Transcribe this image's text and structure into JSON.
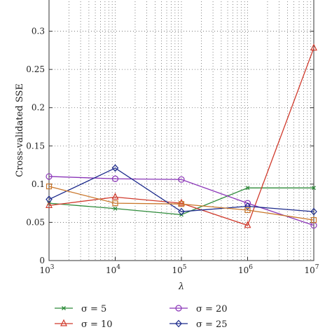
{
  "chart_data": {
    "type": "line",
    "xlabel": "λ",
    "ylabel": "Cross-validated SSE",
    "x": [
      1000,
      10000,
      100000,
      1000000,
      10000000
    ],
    "x_tick_labels": [
      {
        "base": "10",
        "exp": "3"
      },
      {
        "base": "10",
        "exp": "4"
      },
      {
        "base": "10",
        "exp": "5"
      },
      {
        "base": "10",
        "exp": "6"
      },
      {
        "base": "10",
        "exp": "7"
      }
    ],
    "x_scale": "log",
    "xlim": [
      1000,
      10000000
    ],
    "ylim": [
      0,
      0.35
    ],
    "y_ticks": [
      0,
      0.05,
      0.1,
      0.15,
      0.2,
      0.25,
      0.3
    ],
    "y_tick_labels": [
      "0",
      "0.05",
      "0.1",
      "0.15",
      "0.2",
      "0.25",
      "0.3"
    ],
    "grid": true,
    "legend_position": "bottom",
    "series": [
      {
        "name": "σ = 5",
        "color": "#2e8b3a",
        "marker": "x",
        "values": [
          0.075,
          0.068,
          0.06,
          0.095,
          0.095
        ]
      },
      {
        "name": "σ = 10",
        "color": "#d03a2c",
        "marker": "triangle",
        "values": [
          0.072,
          0.083,
          0.075,
          0.046,
          0.278
        ]
      },
      {
        "name": "σ = 20",
        "color": "#8a35b8",
        "marker": "circle",
        "values": [
          0.11,
          0.107,
          0.106,
          0.075,
          0.046
        ]
      },
      {
        "name": "σ = 25",
        "color": "#1c2a8c",
        "marker": "diamond",
        "values": [
          0.08,
          0.121,
          0.064,
          0.071,
          0.064
        ]
      },
      {
        "name": "",
        "color": "#c9762a",
        "marker": "square",
        "values": [
          0.097,
          0.075,
          0.074,
          0.066,
          0.053
        ]
      }
    ]
  }
}
